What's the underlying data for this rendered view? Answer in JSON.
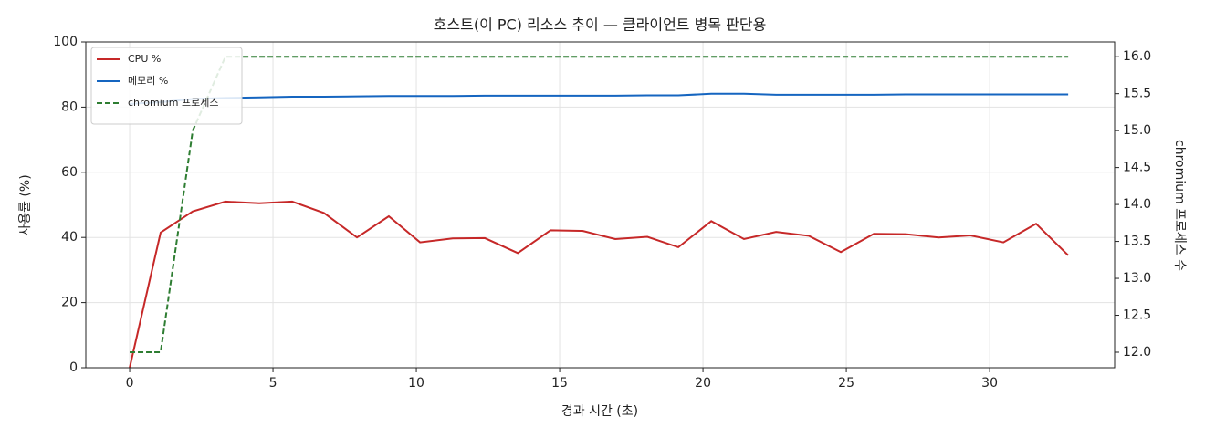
{
  "chart_data": {
    "type": "line",
    "title": "호스트(이 PC) 리소스 추이 — 클라이언트 병목 판단용",
    "xlabel": "경과 시간 (초)",
    "ylabel": "사용률 (%)",
    "y2label": "chromium 프로세스 수",
    "x": [
      0,
      1.08,
      2.2,
      3.34,
      4.52,
      5.67,
      6.78,
      7.93,
      9.04,
      10.13,
      11.27,
      12.39,
      13.54,
      14.68,
      15.8,
      16.94,
      18.06,
      19.14,
      20.29,
      21.43,
      22.55,
      23.69,
      24.81,
      25.96,
      27.07,
      28.22,
      29.33,
      30.48,
      31.62,
      32.74
    ],
    "series": [
      {
        "name": "CPU %",
        "color": "#c62828",
        "linestyle": "solid",
        "axis": "y",
        "values": [
          0,
          41.5,
          48,
          51,
          50.5,
          51,
          47.5,
          40,
          46.5,
          38.5,
          39.7,
          39.8,
          35.2,
          42.2,
          42,
          39.5,
          40.2,
          37,
          45,
          39.5,
          41.7,
          40.5,
          35.5,
          41.1,
          41,
          40,
          40.6,
          38.5,
          44.2,
          34.5
        ]
      },
      {
        "name": "메모리 %",
        "color": "#1565c0",
        "linestyle": "solid",
        "axis": "y",
        "values": [
          81,
          81.5,
          82.5,
          82.8,
          83,
          83.2,
          83.2,
          83.3,
          83.4,
          83.4,
          83.4,
          83.5,
          83.5,
          83.5,
          83.5,
          83.5,
          83.6,
          83.6,
          84.1,
          84.1,
          83.8,
          83.8,
          83.8,
          83.8,
          83.9,
          83.9,
          83.9,
          83.9,
          83.9,
          83.9
        ]
      },
      {
        "name": "chromium 프로세스",
        "color": "#2e7d32",
        "linestyle": "dashed",
        "axis": "y2",
        "values": [
          12,
          12,
          15,
          16,
          16,
          16,
          16,
          16,
          16,
          16,
          16,
          16,
          16,
          16,
          16,
          16,
          16,
          16,
          16,
          16,
          16,
          16,
          16,
          16,
          16,
          16,
          16,
          16,
          16,
          16
        ]
      }
    ],
    "xlim": [
      -1.53,
      34.36
    ],
    "xticks": [
      0,
      5,
      10,
      15,
      20,
      25,
      30
    ],
    "ylim": [
      0,
      100
    ],
    "yticks": [
      0,
      20,
      40,
      60,
      80,
      100
    ],
    "y2lim": [
      11.79,
      16.2
    ],
    "y2ticks": [
      {
        "value": 12,
        "label": "12.0"
      },
      12.5,
      {
        "value": 13,
        "label": "13.0"
      },
      13.5,
      {
        "value": 14,
        "label": "14.0"
      },
      14.5,
      {
        "value": 15,
        "label": "15.0"
      },
      15.5,
      {
        "value": 16,
        "label": "16.0"
      }
    ],
    "grid": true,
    "legend": "upper left"
  }
}
